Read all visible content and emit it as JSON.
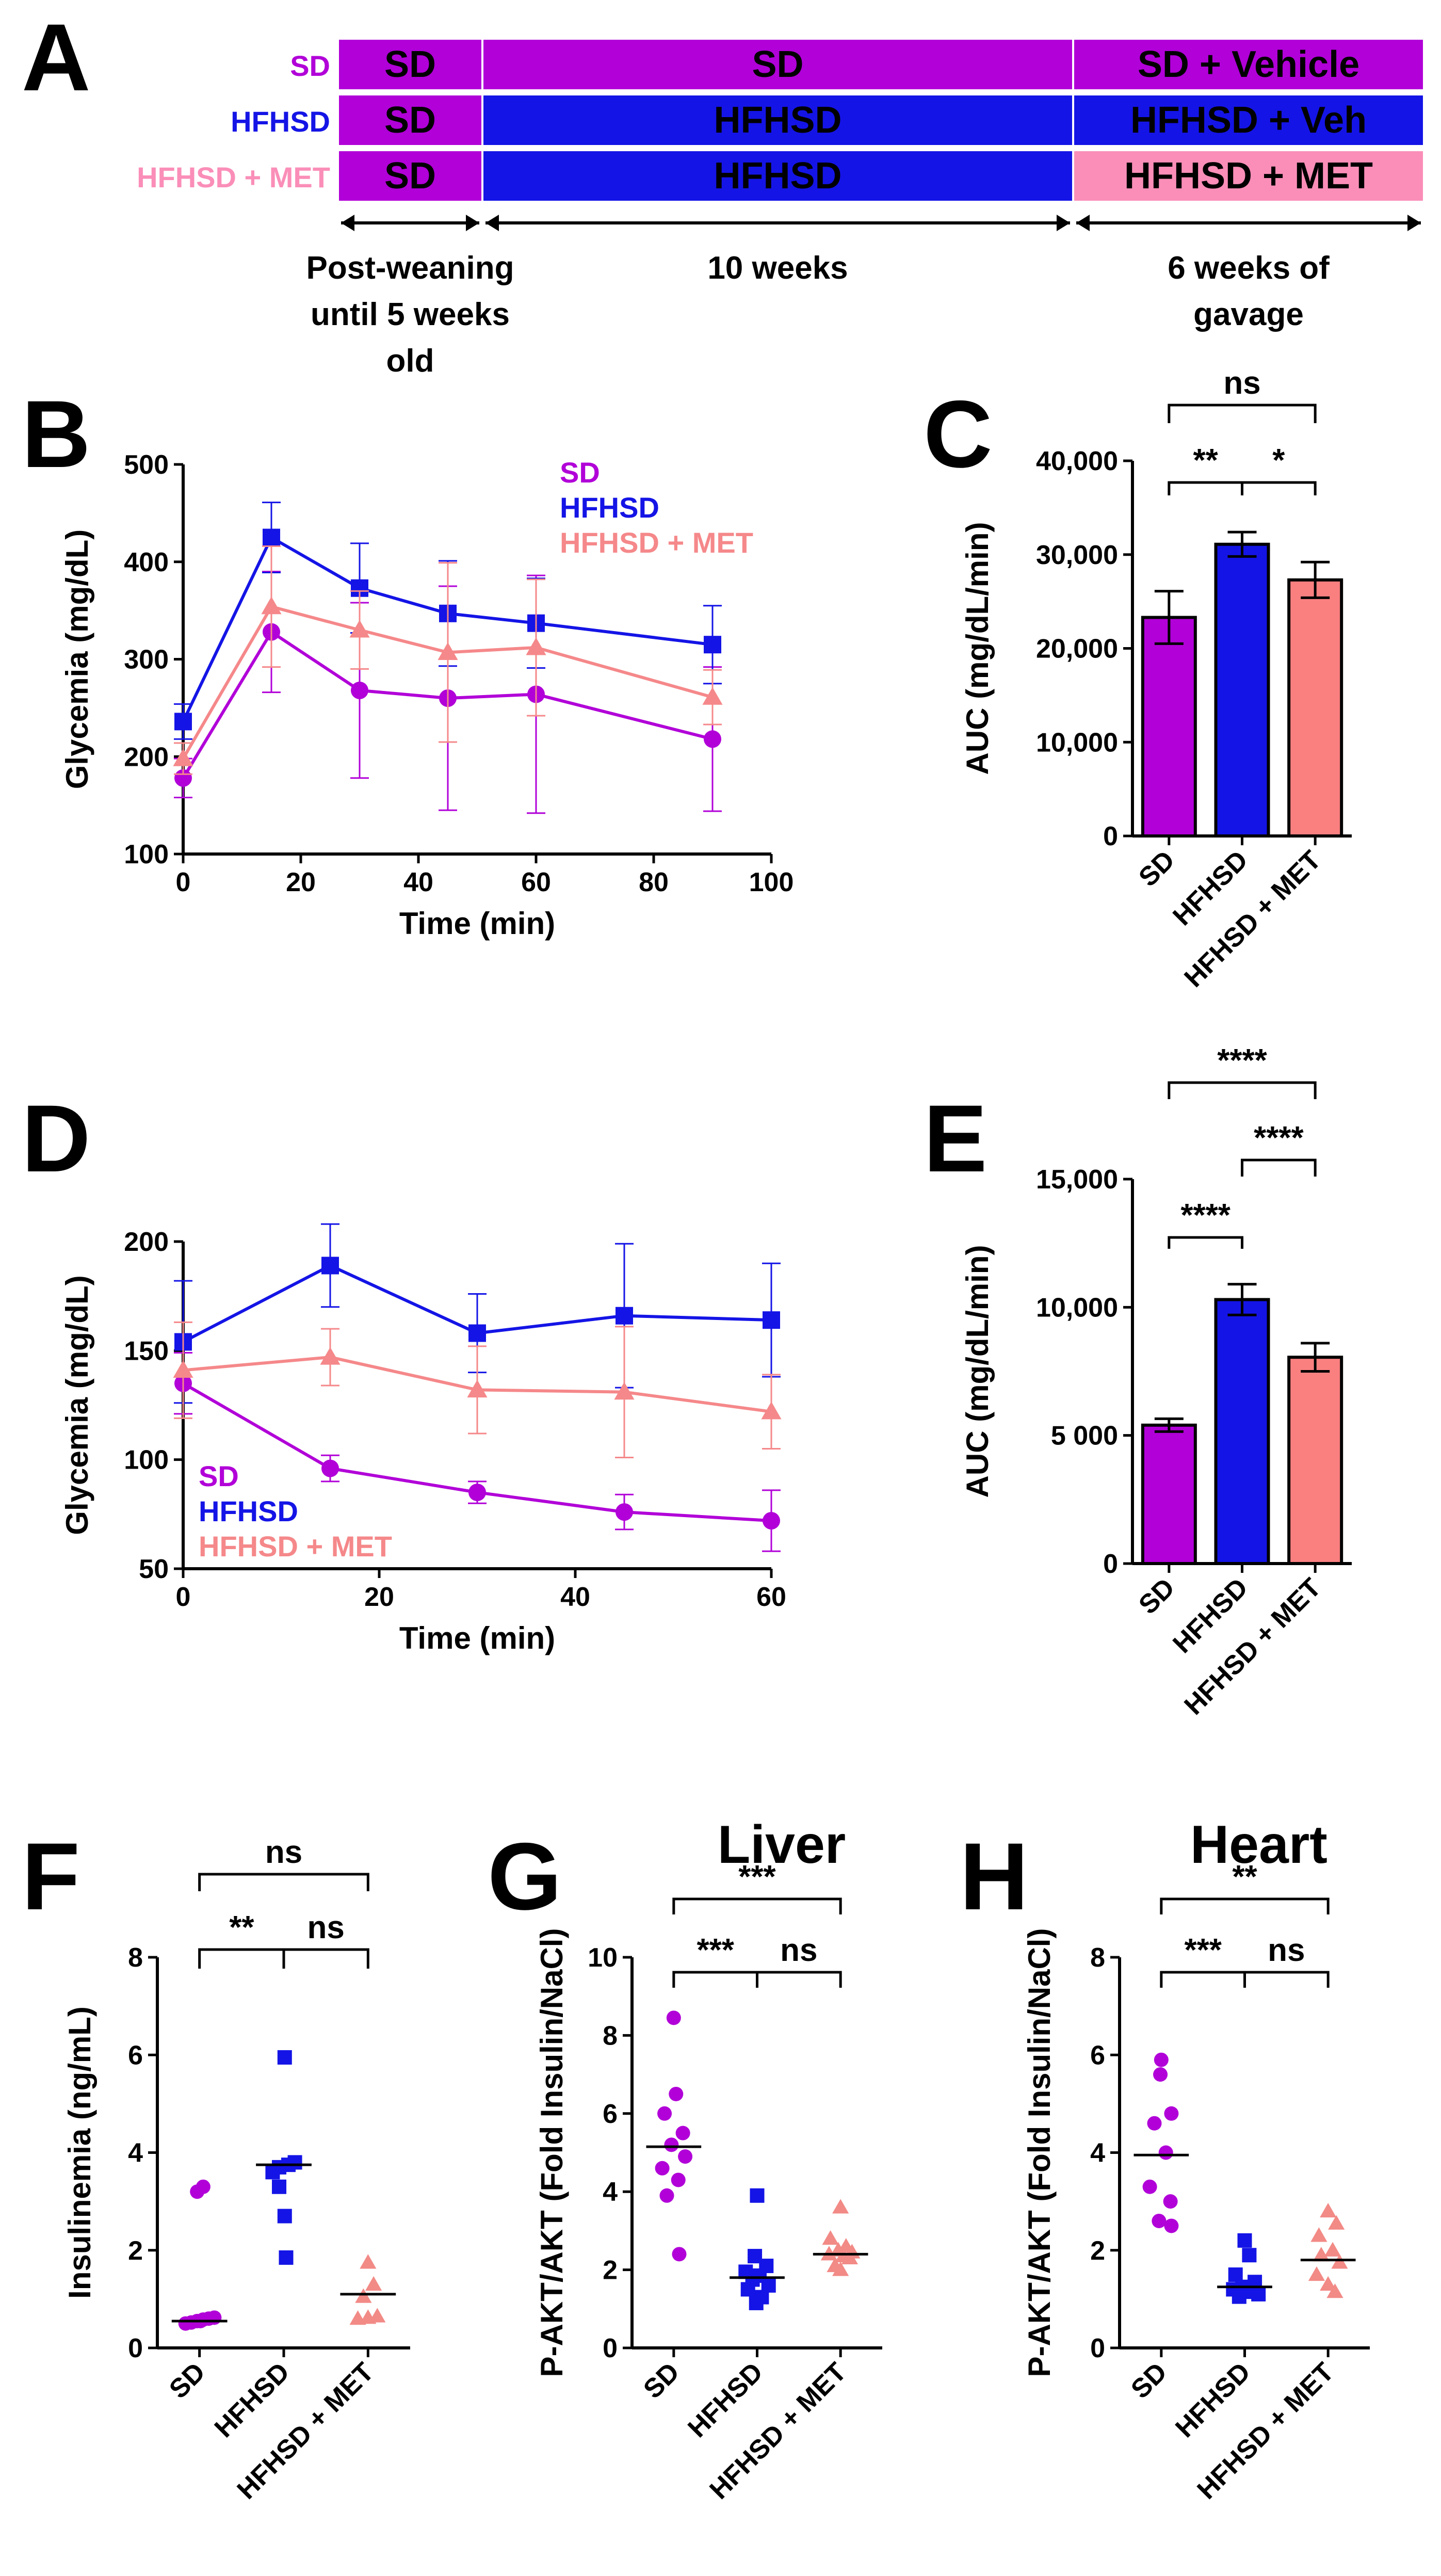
{
  "colors": {
    "SD": "#b100d8",
    "HFHSD": "#1414e6",
    "MET_light": "#fa8eb8",
    "MET_line": "#f5888a",
    "MET_bar": "#fa8080",
    "MET_pts": "#f28a86"
  },
  "scheme": {
    "panel": "A",
    "rows": [
      {
        "group": "SD",
        "group_color": "#b100d8",
        "cells": [
          {
            "text": "SD",
            "color": "#b100d8"
          },
          {
            "text": "SD",
            "color": "#b100d8"
          },
          {
            "text": "SD + Vehicle",
            "color": "#b100d8"
          }
        ]
      },
      {
        "group": "HFHSD",
        "group_color": "#1414e6",
        "cells": [
          {
            "text": "SD",
            "color": "#b100d8"
          },
          {
            "text": "HFHSD",
            "color": "#1414e6"
          },
          {
            "text": "HFHSD + Veh",
            "color": "#1414e6"
          }
        ]
      },
      {
        "group": "HFHSD + MET",
        "group_color": "#fa8eb8",
        "cells": [
          {
            "text": "SD",
            "color": "#b100d8"
          },
          {
            "text": "HFHSD",
            "color": "#1414e6"
          },
          {
            "text": "HFHSD + MET",
            "color": "#fa8eb8"
          }
        ]
      }
    ],
    "durations": [
      [
        "Post-weaning",
        "until 5 weeks",
        "old"
      ],
      [
        "10 weeks"
      ],
      [
        "6 weeks of",
        "gavage"
      ]
    ]
  },
  "chart_data": [
    {
      "panel": "B",
      "type": "line",
      "xlabel": "Time (min)",
      "ylabel": "Glycemia (mg/dL)",
      "xlim": [
        0,
        100
      ],
      "ylim": [
        100,
        500
      ],
      "xticks": [
        0,
        20,
        40,
        60,
        80,
        100
      ],
      "yticks": [
        100,
        200,
        300,
        400,
        500
      ],
      "legend": [
        "SD",
        "HFHSD",
        "HFHSD + MET"
      ],
      "legend_position": "top-right",
      "series": [
        {
          "name": "SD",
          "color": "#b100d8",
          "marker": "circle",
          "x": [
            0,
            15,
            30,
            45,
            60,
            90
          ],
          "y": [
            178,
            328,
            268,
            260,
            264,
            218
          ],
          "err": [
            20,
            62,
            90,
            115,
            122,
            74
          ]
        },
        {
          "name": "HFHSD",
          "color": "#1414e6",
          "marker": "square",
          "x": [
            0,
            15,
            30,
            45,
            60,
            90
          ],
          "y": [
            236,
            425,
            373,
            347,
            337,
            315
          ],
          "err": [
            18,
            36,
            46,
            54,
            46,
            40
          ]
        },
        {
          "name": "HFHSD + MET",
          "color": "#f5888a",
          "marker": "triangle",
          "x": [
            0,
            15,
            30,
            45,
            60,
            90
          ],
          "y": [
            198,
            354,
            330,
            307,
            312,
            261
          ],
          "err": [
            16,
            62,
            40,
            92,
            70,
            28
          ]
        }
      ]
    },
    {
      "panel": "C",
      "type": "bar",
      "categories": [
        "SD",
        "HFHSD",
        "HFHSD + MET"
      ],
      "values": [
        23300,
        31100,
        27300
      ],
      "err": [
        2800,
        1300,
        1900
      ],
      "colors": [
        "#b100d8",
        "#1414e6",
        "#fa8080"
      ],
      "ylabel": "AUC (mg/dL/min)",
      "ylim": [
        0,
        40000
      ],
      "yticks": [
        0,
        10000,
        20000,
        30000,
        40000
      ],
      "ytick_labels": [
        "0",
        "10,000",
        "20,000",
        "30,000",
        "40,000"
      ],
      "significance": [
        {
          "from": 0,
          "to": 2,
          "label": "ns"
        },
        {
          "from": 0,
          "to": 1,
          "label": "**"
        },
        {
          "from": 1,
          "to": 2,
          "label": "*"
        }
      ]
    },
    {
      "panel": "D",
      "type": "line",
      "xlabel": "Time (min)",
      "ylabel": "Glycemia (mg/dL)",
      "xlim": [
        0,
        60
      ],
      "ylim": [
        50,
        200
      ],
      "xticks": [
        0,
        20,
        40,
        60
      ],
      "yticks": [
        50,
        100,
        150,
        200
      ],
      "legend": [
        "SD",
        "HFHSD",
        "HFHSD + MET"
      ],
      "legend_position": "bottom-left",
      "series": [
        {
          "name": "SD",
          "color": "#b100d8",
          "marker": "circle",
          "x": [
            0,
            15,
            30,
            45,
            60
          ],
          "y": [
            135,
            96,
            85,
            76,
            72
          ],
          "err": [
            14,
            6,
            5,
            8,
            14
          ]
        },
        {
          "name": "HFHSD",
          "color": "#1414e6",
          "marker": "square",
          "x": [
            0,
            15,
            30,
            45,
            60
          ],
          "y": [
            154,
            189,
            158,
            166,
            164
          ],
          "err": [
            28,
            19,
            18,
            33,
            26
          ]
        },
        {
          "name": "HFHSD + MET",
          "color": "#f5888a",
          "marker": "triangle",
          "x": [
            0,
            15,
            30,
            45,
            60
          ],
          "y": [
            141,
            147,
            132,
            131,
            122
          ],
          "err": [
            22,
            13,
            20,
            30,
            17
          ]
        }
      ]
    },
    {
      "panel": "E",
      "type": "bar",
      "categories": [
        "SD",
        "HFHSD",
        "HFHSD + MET"
      ],
      "values": [
        5400,
        10300,
        8050
      ],
      "err": [
        250,
        600,
        550
      ],
      "colors": [
        "#b100d8",
        "#1414e6",
        "#fa8080"
      ],
      "ylabel": "AUC (mg/dL/min)",
      "ylim": [
        0,
        15000
      ],
      "yticks": [
        0,
        5000,
        10000,
        15000
      ],
      "ytick_labels": [
        "0",
        "5 000",
        "10,000",
        "15,000"
      ],
      "significance": [
        {
          "from": 0,
          "to": 2,
          "label": "****"
        },
        {
          "from": 1,
          "to": 2,
          "label": "****"
        },
        {
          "from": 0,
          "to": 1,
          "label": "****"
        }
      ]
    },
    {
      "panel": "F",
      "type": "scatter",
      "title": "",
      "categories": [
        "SD",
        "HFHSD",
        "HFHSD + MET"
      ],
      "ylabel": "Insulinemia (ng/mL)",
      "ylim": [
        0,
        8
      ],
      "yticks": [
        0,
        2,
        4,
        6,
        8
      ],
      "groups": [
        {
          "name": "SD",
          "color": "#b100d8",
          "marker": "circle",
          "median": 0.55,
          "points": [
            0.5,
            0.52,
            0.55,
            0.58,
            0.6,
            0.62,
            0.55,
            3.2,
            3.3
          ],
          "offsets": [
            -0.3,
            -0.18,
            -0.05,
            0.08,
            0.2,
            0.32,
            0.02,
            -0.05,
            0.08
          ]
        },
        {
          "name": "HFHSD",
          "color": "#1414e6",
          "marker": "square",
          "median": 3.75,
          "points": [
            1.85,
            2.7,
            3.3,
            3.6,
            3.7,
            3.75,
            3.8,
            5.95
          ],
          "offsets": [
            0.05,
            0.02,
            -0.1,
            -0.24,
            -0.1,
            0.1,
            0.24,
            0.02
          ]
        },
        {
          "name": "HFHSD + MET",
          "color": "#f28a86",
          "marker": "triangle",
          "median": 1.1,
          "points": [
            0.6,
            0.62,
            0.65,
            1.05,
            1.3,
            1.75
          ],
          "offsets": [
            -0.22,
            0.0,
            0.2,
            -0.1,
            0.12,
            0.0
          ]
        }
      ],
      "significance": [
        {
          "from": 0,
          "to": 2,
          "label": "ns"
        },
        {
          "from": 0,
          "to": 1,
          "label": "**"
        },
        {
          "from": 1,
          "to": 2,
          "label": "ns"
        }
      ]
    },
    {
      "panel": "G",
      "type": "scatter",
      "title": "Liver",
      "categories": [
        "SD",
        "HFHSD",
        "HFHSD + MET"
      ],
      "ylabel": "P-AKT/AKT (Fold Insulin/NaCl)",
      "ylim": [
        0,
        10
      ],
      "yticks": [
        0,
        2,
        4,
        6,
        8,
        10
      ],
      "groups": [
        {
          "name": "SD",
          "color": "#b100d8",
          "marker": "circle",
          "median": 5.15,
          "points": [
            8.45,
            6.5,
            6.0,
            5.5,
            5.2,
            4.9,
            4.6,
            4.3,
            3.9,
            2.4
          ],
          "offsets": [
            0.0,
            0.05,
            -0.2,
            0.2,
            -0.05,
            0.25,
            -0.25,
            0.1,
            -0.15,
            0.12
          ]
        },
        {
          "name": "HFHSD",
          "color": "#1414e6",
          "marker": "square",
          "median": 1.8,
          "points": [
            3.9,
            2.35,
            2.1,
            1.95,
            1.85,
            1.75,
            1.6,
            1.5,
            1.3,
            1.15
          ],
          "offsets": [
            0.0,
            -0.05,
            0.2,
            -0.25,
            0.05,
            -0.1,
            0.25,
            -0.2,
            0.1,
            -0.02
          ]
        },
        {
          "name": "HFHSD + MET",
          "color": "#f28a86",
          "marker": "triangle",
          "median": 2.4,
          "points": [
            3.6,
            2.8,
            2.6,
            2.5,
            2.45,
            2.4,
            2.35,
            2.3,
            2.1,
            2.0
          ],
          "offsets": [
            0.0,
            -0.22,
            0.12,
            -0.05,
            0.25,
            -0.25,
            0.06,
            0.2,
            -0.12,
            0.0
          ]
        }
      ],
      "significance": [
        {
          "from": 0,
          "to": 2,
          "label": "***"
        },
        {
          "from": 0,
          "to": 1,
          "label": "***"
        },
        {
          "from": 1,
          "to": 2,
          "label": "ns"
        }
      ]
    },
    {
      "panel": "H",
      "type": "scatter",
      "title": "Heart",
      "categories": [
        "SD",
        "HFHSD",
        "HFHSD + MET"
      ],
      "ylabel": "P-AKT/AKT (Fold Insulin/NaCl)",
      "ylim": [
        0,
        8
      ],
      "yticks": [
        0,
        2,
        4,
        6,
        8
      ],
      "groups": [
        {
          "name": "SD",
          "color": "#b100d8",
          "marker": "circle",
          "median": 3.95,
          "points": [
            5.9,
            5.6,
            4.8,
            4.6,
            4.0,
            3.3,
            3.0,
            2.6,
            2.5
          ],
          "offsets": [
            0.0,
            -0.02,
            0.22,
            -0.15,
            0.1,
            -0.25,
            0.2,
            -0.05,
            0.22
          ]
        },
        {
          "name": "HFHSD",
          "color": "#1414e6",
          "marker": "square",
          "median": 1.25,
          "points": [
            2.2,
            1.9,
            1.5,
            1.35,
            1.25,
            1.2,
            1.15,
            1.1,
            1.05
          ],
          "offsets": [
            0.0,
            0.1,
            -0.2,
            0.22,
            -0.05,
            -0.25,
            0.12,
            0.3,
            -0.12
          ]
        },
        {
          "name": "HFHSD + MET",
          "color": "#f28a86",
          "marker": "triangle",
          "median": 1.8,
          "points": [
            2.8,
            2.55,
            2.3,
            2.0,
            1.9,
            1.75,
            1.5,
            1.3,
            1.15
          ],
          "offsets": [
            0.0,
            0.18,
            -0.2,
            0.1,
            -0.15,
            0.25,
            -0.25,
            0.0,
            0.15
          ]
        }
      ],
      "significance": [
        {
          "from": 0,
          "to": 2,
          "label": "**"
        },
        {
          "from": 0,
          "to": 1,
          "label": "***"
        },
        {
          "from": 1,
          "to": 2,
          "label": "ns"
        }
      ]
    }
  ]
}
